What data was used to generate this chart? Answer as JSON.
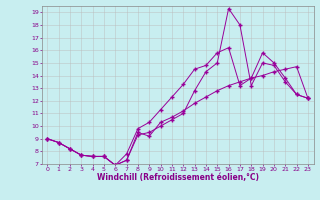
{
  "background_color": "#c8eef0",
  "line_color": "#990099",
  "grid_color": "#bbbbbb",
  "xlabel": "Windchill (Refroidissement éolien,°C)",
  "xlabel_color": "#880088",
  "tick_color": "#880088",
  "ylim": [
    7,
    19.5
  ],
  "xlim": [
    -0.5,
    23.5
  ],
  "yticks": [
    7,
    8,
    9,
    10,
    11,
    12,
    13,
    14,
    15,
    16,
    17,
    18,
    19
  ],
  "xticks": [
    0,
    1,
    2,
    3,
    4,
    5,
    6,
    7,
    8,
    9,
    10,
    11,
    12,
    13,
    14,
    15,
    16,
    17,
    18,
    19,
    20,
    21,
    22,
    23
  ],
  "line1_x": [
    0,
    1,
    2,
    3,
    4,
    5,
    6,
    7,
    8,
    9,
    10,
    11,
    12,
    13,
    14,
    15,
    16,
    17,
    18,
    19,
    20,
    21,
    22,
    23
  ],
  "line1_y": [
    9.0,
    8.7,
    8.2,
    7.7,
    7.6,
    7.6,
    6.9,
    7.3,
    9.5,
    9.2,
    10.3,
    10.7,
    11.2,
    11.8,
    12.3,
    12.8,
    13.2,
    13.5,
    13.8,
    14.0,
    14.3,
    14.5,
    14.7,
    12.2
  ],
  "line2_x": [
    0,
    1,
    2,
    3,
    4,
    5,
    6,
    7,
    8,
    9,
    10,
    11,
    12,
    13,
    14,
    15,
    16,
    17,
    18,
    19,
    20,
    21,
    22,
    23
  ],
  "line2_y": [
    9.0,
    8.7,
    8.2,
    7.7,
    7.6,
    7.6,
    6.9,
    7.8,
    9.8,
    10.3,
    11.3,
    12.3,
    13.3,
    14.5,
    14.8,
    15.8,
    16.2,
    13.2,
    13.8,
    15.8,
    15.0,
    13.8,
    12.5,
    12.2
  ],
  "line3_x": [
    0,
    1,
    2,
    3,
    4,
    5,
    6,
    7,
    8,
    9,
    10,
    11,
    12,
    13,
    14,
    15,
    16,
    17,
    18,
    19,
    20,
    21,
    22,
    23
  ],
  "line3_y": [
    9.0,
    8.7,
    8.2,
    7.7,
    7.6,
    7.6,
    6.9,
    7.3,
    9.3,
    9.5,
    10.0,
    10.5,
    11.0,
    12.8,
    14.3,
    15.0,
    19.3,
    18.0,
    13.2,
    15.0,
    14.8,
    13.5,
    12.5,
    12.2
  ]
}
